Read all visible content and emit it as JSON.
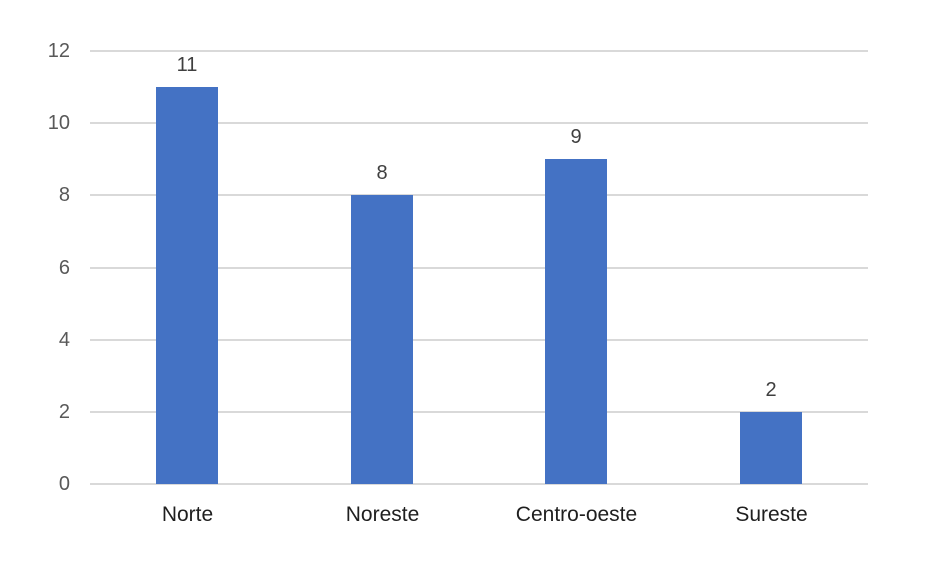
{
  "chart_data": {
    "type": "bar",
    "categories": [
      "Norte",
      "Noreste",
      "Centro-oeste",
      "Sureste"
    ],
    "values": [
      11,
      8,
      9,
      2
    ],
    "data_labels": [
      "11",
      "8",
      "9",
      "2"
    ],
    "yticks": [
      "0",
      "2",
      "4",
      "6",
      "8",
      "10",
      "12"
    ],
    "ytick_values": [
      0,
      2,
      4,
      6,
      8,
      10,
      12
    ],
    "ylim": [
      0,
      12
    ],
    "title": "",
    "xlabel": "",
    "ylabel": "",
    "grid": "on",
    "legend": "none",
    "colors": {
      "bar_fill": "#4472C4",
      "gridline": "#D9D9D9",
      "y_axis_text": "#595959",
      "data_label_text": "#3F3F3F",
      "category_text": "#1F1F1F",
      "background": "#FFFFFF"
    }
  }
}
